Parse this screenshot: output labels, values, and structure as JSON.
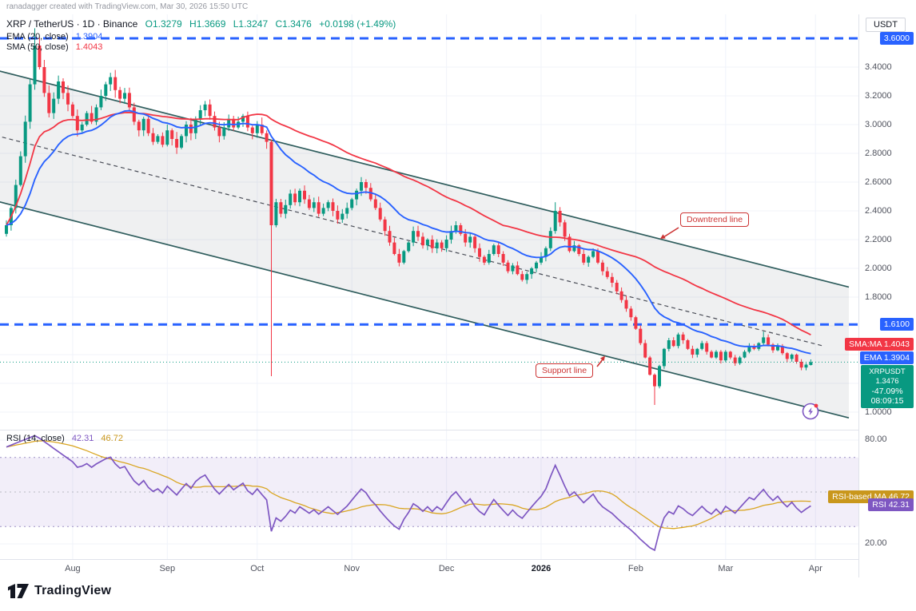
{
  "attribution": "ranadagger created with TradingView.com, Mar 30, 2026 15:50 UTC",
  "header": {
    "title": "XRP / TetherUS · 1D · Binance",
    "ohlc": {
      "o": "O1.3279",
      "h": "H1.3669",
      "l": "L1.3247",
      "c": "C1.3476",
      "change": "+0.0198 (+1.49%)"
    },
    "ema": {
      "label": "EMA (20, close)",
      "value": "1.3904"
    },
    "sma": {
      "label": "SMA (50, close)",
      "value": "1.4043"
    }
  },
  "rsi_legend": {
    "label": "RSI (14, close)",
    "rsi_value": "42.31",
    "ma_value": "46.72"
  },
  "axis": {
    "currency": "USDT",
    "price_ticks": [
      "3.4000",
      "3.2000",
      "3.0000",
      "2.8000",
      "2.6000",
      "2.4000",
      "2.2000",
      "2.0000",
      "1.8000",
      "1.0000"
    ],
    "price_badges": [
      {
        "text": "3.6000",
        "price": 3.6,
        "bg": "#2962ff"
      },
      {
        "text": "1.6100",
        "price": 1.61,
        "bg": "#2962ff"
      },
      {
        "text": "SMA:MA 1.4043",
        "price": 1.4043,
        "bg": "#f23645"
      },
      {
        "text": "EMA 1.3904",
        "price": 1.3904,
        "bg": "#2962ff"
      }
    ],
    "ticker_badge": {
      "lines": [
        "XRPUSDT 1.3476",
        "-47.09%",
        "08:09:15"
      ],
      "price": 1.3476
    },
    "rsi_ticks": [
      {
        "label": "80.00",
        "v": 80
      },
      {
        "label": "20.00",
        "v": 20
      }
    ],
    "rsi_badges": [
      {
        "label": "RSI-based MA",
        "value": "46.72",
        "v": 46.72,
        "bg": "#c9971c"
      },
      {
        "label": "RSI",
        "value": "42.31",
        "v": 42.31,
        "bg": "#7e57c2"
      }
    ]
  },
  "time_axis": {
    "months": [
      {
        "label": "Aug",
        "i": 14
      },
      {
        "label": "Sep",
        "i": 34
      },
      {
        "label": "Oct",
        "i": 53
      },
      {
        "label": "Nov",
        "i": 73
      },
      {
        "label": "Dec",
        "i": 93
      },
      {
        "label": "2026",
        "i": 113,
        "strong": true
      },
      {
        "label": "Feb",
        "i": 133
      },
      {
        "label": "Mar",
        "i": 152
      },
      {
        "label": "Apr",
        "i": 171
      }
    ]
  },
  "annotations": [
    {
      "text": "Downtrend line"
    },
    {
      "text": "Support line"
    }
  ],
  "logo": {
    "text": "TradingView"
  },
  "colors": {
    "up": "#089981",
    "down": "#f23645",
    "ema": "#2962ff",
    "sma": "#f23645",
    "level": "#2962ff",
    "channel": "#2f5d5d",
    "channel_median": "#4a4d57",
    "rsi": "#7e57c2",
    "rsi_ma": "#d9a521",
    "annotation": "#cc3333",
    "ticker_bg": "#089981",
    "grid": "#f0f3fa"
  },
  "chart_data": {
    "type": "candlestick",
    "symbol": "XRPUSDT",
    "exchange": "Binance",
    "interval": "1D",
    "ohlc_last": {
      "o": 1.3279,
      "h": 1.3669,
      "l": 1.3247,
      "c": 1.3476,
      "change": 0.0198,
      "change_pct": 1.49
    },
    "ylim": [
      0.95,
      3.75
    ],
    "first_open": 2.24,
    "closes": [
      2.3,
      2.42,
      2.58,
      2.78,
      3.02,
      3.28,
      3.55,
      3.4,
      3.22,
      3.08,
      3.18,
      3.3,
      3.22,
      3.14,
      3.06,
      2.96,
      3.0,
      3.08,
      3.02,
      3.12,
      3.2,
      3.28,
      3.33,
      3.24,
      3.18,
      3.22,
      3.12,
      3.02,
      2.96,
      3.04,
      2.94,
      2.88,
      2.92,
      2.86,
      2.96,
      2.9,
      2.84,
      2.92,
      3.0,
      2.94,
      3.04,
      3.1,
      3.14,
      3.06,
      2.98,
      2.92,
      2.98,
      3.04,
      2.98,
      3.02,
      3.06,
      2.98,
      2.94,
      3.0,
      2.94,
      2.88,
      2.3,
      2.46,
      2.38,
      2.44,
      2.52,
      2.46,
      2.54,
      2.48,
      2.42,
      2.46,
      2.38,
      2.42,
      2.46,
      2.4,
      2.34,
      2.38,
      2.42,
      2.48,
      2.54,
      2.6,
      2.56,
      2.48,
      2.42,
      2.34,
      2.26,
      2.18,
      2.1,
      2.04,
      2.12,
      2.18,
      2.26,
      2.22,
      2.16,
      2.2,
      2.14,
      2.18,
      2.14,
      2.2,
      2.26,
      2.3,
      2.24,
      2.18,
      2.22,
      2.14,
      2.08,
      2.04,
      2.1,
      2.16,
      2.1,
      2.04,
      1.98,
      2.02,
      1.96,
      1.92,
      1.96,
      2.0,
      2.04,
      2.08,
      2.14,
      2.26,
      2.4,
      2.32,
      2.22,
      2.12,
      2.16,
      2.1,
      2.04,
      2.08,
      2.12,
      2.04,
      1.98,
      1.94,
      1.9,
      1.84,
      1.78,
      1.72,
      1.66,
      1.58,
      1.48,
      1.38,
      1.26,
      1.18,
      1.32,
      1.44,
      1.5,
      1.46,
      1.54,
      1.5,
      1.44,
      1.4,
      1.44,
      1.48,
      1.42,
      1.38,
      1.42,
      1.36,
      1.42,
      1.38,
      1.34,
      1.38,
      1.42,
      1.46,
      1.44,
      1.48,
      1.52,
      1.47,
      1.43,
      1.46,
      1.41,
      1.37,
      1.4,
      1.35,
      1.31,
      1.33,
      1.3476
    ],
    "wick_overrides": {
      "6": {
        "h": 3.67
      },
      "56": {
        "l": 1.25
      },
      "116": {
        "h": 2.46
      },
      "137": {
        "l": 1.05
      },
      "160": {
        "h": 1.56
      },
      "170": {
        "o": 1.3279,
        "h": 1.3669,
        "l": 1.3247
      }
    },
    "levels": [
      {
        "price": 3.6,
        "label": "3.6000",
        "style": "dashed"
      },
      {
        "price": 1.61,
        "label": "1.6100",
        "style": "dashed"
      }
    ],
    "last_price": 1.3476,
    "channel": {
      "upper_start_price": 3.38,
      "upper_end_price": 1.87,
      "lower_start_price": 2.47,
      "lower_end_price": 0.96,
      "x_end": 1062
    },
    "indicators": {
      "ema_period": 20,
      "ema_last": 1.3904,
      "sma_period": 50,
      "sma_last": 1.4043,
      "rsi_period": 14,
      "rsi_last": 42.31,
      "rsi_ma_last": 46.72,
      "rsi_band": [
        30,
        70
      ],
      "rsi_axis_range": [
        20,
        80
      ]
    }
  }
}
